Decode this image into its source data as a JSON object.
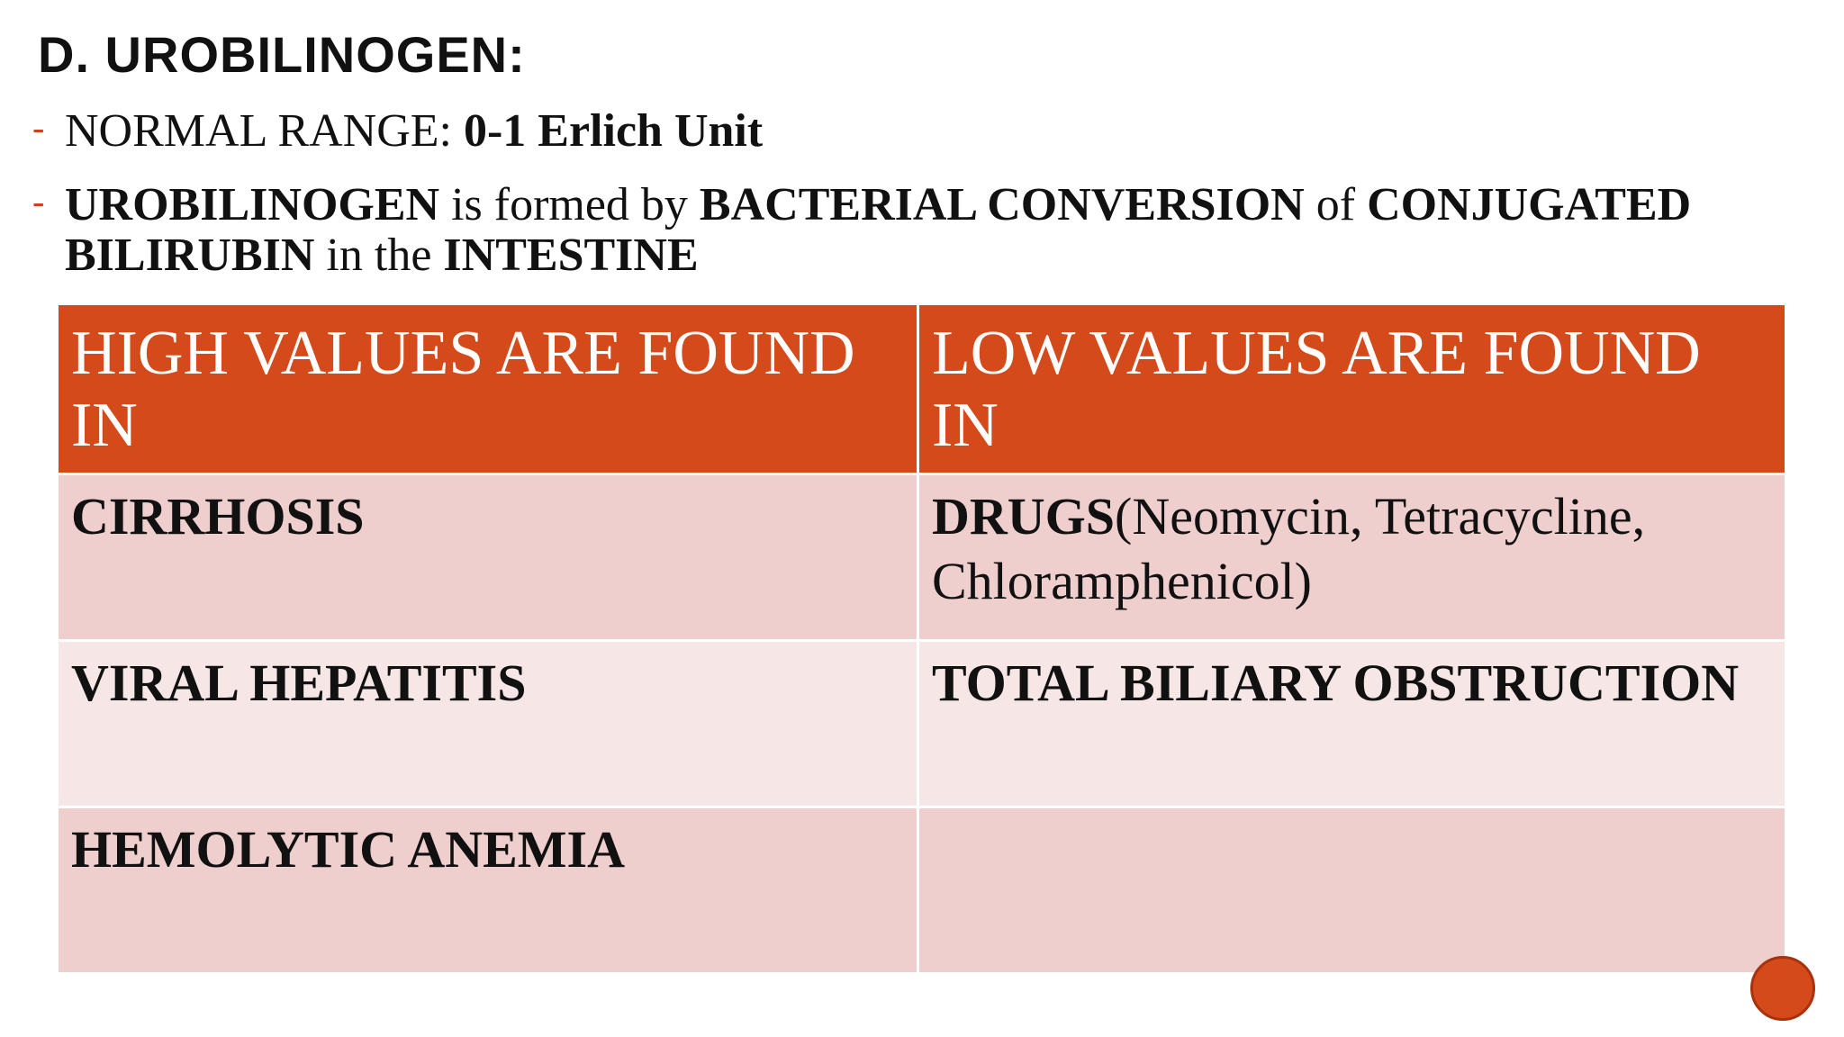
{
  "slide": {
    "title": "D. UROBILINOGEN:",
    "bullets": [
      {
        "parts": [
          {
            "text": "NORMAL RANGE: ",
            "bold": false
          },
          {
            "text": "0-1 Erlich Unit",
            "bold": true
          }
        ]
      },
      {
        "parts": [
          {
            "text": "UROBILINOGEN",
            "bold": true
          },
          {
            "text": " is formed by ",
            "bold": false
          },
          {
            "text": "BACTERIAL CONVERSION",
            "bold": true
          },
          {
            "text": " of ",
            "bold": false
          },
          {
            "text": "CONJUGATED BILIRUBIN",
            "bold": true
          },
          {
            "text": " in the ",
            "bold": false
          },
          {
            "text": "INTESTINE",
            "bold": true
          }
        ]
      }
    ],
    "table": {
      "headers": [
        "HIGH VALUES ARE FOUND IN",
        "LOW VALUES ARE FOUND IN"
      ],
      "rows": [
        {
          "high": "CIRRHOSIS",
          "low_bold": "DRUGS",
          "low_rest": "(Neomycin, Tetracycline, Chloramphenicol)"
        },
        {
          "high": "VIRAL HEPATITIS",
          "low_bold": "TOTAL BILIARY OBSTRUCTION",
          "low_rest": ""
        },
        {
          "high": "HEMOLYTIC ANEMIA",
          "low_bold": "",
          "low_rest": ""
        }
      ]
    },
    "colors": {
      "accent": "#d44a1a",
      "row_dark": "#efcfcd",
      "row_light": "#f6e7e6"
    }
  }
}
